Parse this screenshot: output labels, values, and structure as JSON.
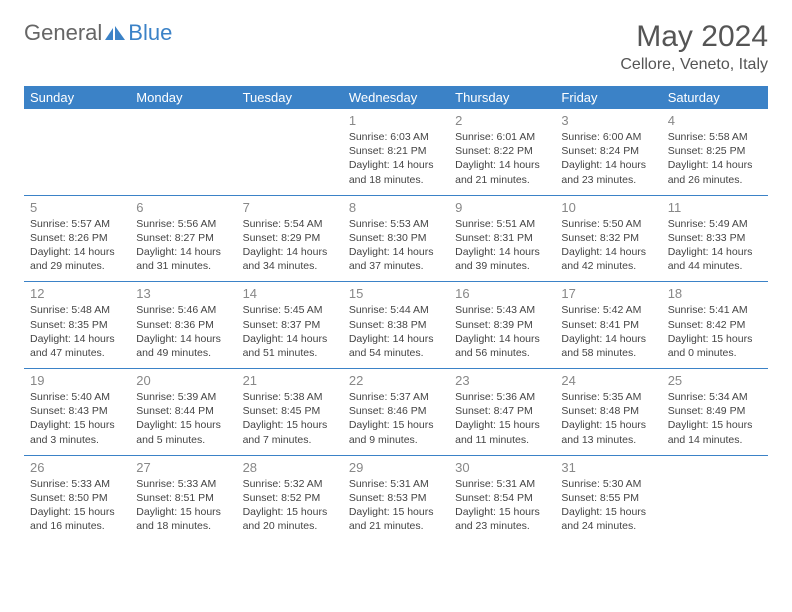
{
  "logo": {
    "text1": "General",
    "text2": "Blue",
    "icon_color": "#3b82c7"
  },
  "title": "May 2024",
  "location": "Cellore, Veneto, Italy",
  "colors": {
    "header_bg": "#3b82c7",
    "header_text": "#ffffff",
    "border": "#3b82c7",
    "daynum": "#888888",
    "body_text": "#444444"
  },
  "weekdays": [
    "Sunday",
    "Monday",
    "Tuesday",
    "Wednesday",
    "Thursday",
    "Friday",
    "Saturday"
  ],
  "weeks": [
    [
      null,
      null,
      null,
      {
        "num": "1",
        "sunrise": "6:03 AM",
        "sunset": "8:21 PM",
        "daylight": "14 hours and 18 minutes."
      },
      {
        "num": "2",
        "sunrise": "6:01 AM",
        "sunset": "8:22 PM",
        "daylight": "14 hours and 21 minutes."
      },
      {
        "num": "3",
        "sunrise": "6:00 AM",
        "sunset": "8:24 PM",
        "daylight": "14 hours and 23 minutes."
      },
      {
        "num": "4",
        "sunrise": "5:58 AM",
        "sunset": "8:25 PM",
        "daylight": "14 hours and 26 minutes."
      }
    ],
    [
      {
        "num": "5",
        "sunrise": "5:57 AM",
        "sunset": "8:26 PM",
        "daylight": "14 hours and 29 minutes."
      },
      {
        "num": "6",
        "sunrise": "5:56 AM",
        "sunset": "8:27 PM",
        "daylight": "14 hours and 31 minutes."
      },
      {
        "num": "7",
        "sunrise": "5:54 AM",
        "sunset": "8:29 PM",
        "daylight": "14 hours and 34 minutes."
      },
      {
        "num": "8",
        "sunrise": "5:53 AM",
        "sunset": "8:30 PM",
        "daylight": "14 hours and 37 minutes."
      },
      {
        "num": "9",
        "sunrise": "5:51 AM",
        "sunset": "8:31 PM",
        "daylight": "14 hours and 39 minutes."
      },
      {
        "num": "10",
        "sunrise": "5:50 AM",
        "sunset": "8:32 PM",
        "daylight": "14 hours and 42 minutes."
      },
      {
        "num": "11",
        "sunrise": "5:49 AM",
        "sunset": "8:33 PM",
        "daylight": "14 hours and 44 minutes."
      }
    ],
    [
      {
        "num": "12",
        "sunrise": "5:48 AM",
        "sunset": "8:35 PM",
        "daylight": "14 hours and 47 minutes."
      },
      {
        "num": "13",
        "sunrise": "5:46 AM",
        "sunset": "8:36 PM",
        "daylight": "14 hours and 49 minutes."
      },
      {
        "num": "14",
        "sunrise": "5:45 AM",
        "sunset": "8:37 PM",
        "daylight": "14 hours and 51 minutes."
      },
      {
        "num": "15",
        "sunrise": "5:44 AM",
        "sunset": "8:38 PM",
        "daylight": "14 hours and 54 minutes."
      },
      {
        "num": "16",
        "sunrise": "5:43 AM",
        "sunset": "8:39 PM",
        "daylight": "14 hours and 56 minutes."
      },
      {
        "num": "17",
        "sunrise": "5:42 AM",
        "sunset": "8:41 PM",
        "daylight": "14 hours and 58 minutes."
      },
      {
        "num": "18",
        "sunrise": "5:41 AM",
        "sunset": "8:42 PM",
        "daylight": "15 hours and 0 minutes."
      }
    ],
    [
      {
        "num": "19",
        "sunrise": "5:40 AM",
        "sunset": "8:43 PM",
        "daylight": "15 hours and 3 minutes."
      },
      {
        "num": "20",
        "sunrise": "5:39 AM",
        "sunset": "8:44 PM",
        "daylight": "15 hours and 5 minutes."
      },
      {
        "num": "21",
        "sunrise": "5:38 AM",
        "sunset": "8:45 PM",
        "daylight": "15 hours and 7 minutes."
      },
      {
        "num": "22",
        "sunrise": "5:37 AM",
        "sunset": "8:46 PM",
        "daylight": "15 hours and 9 minutes."
      },
      {
        "num": "23",
        "sunrise": "5:36 AM",
        "sunset": "8:47 PM",
        "daylight": "15 hours and 11 minutes."
      },
      {
        "num": "24",
        "sunrise": "5:35 AM",
        "sunset": "8:48 PM",
        "daylight": "15 hours and 13 minutes."
      },
      {
        "num": "25",
        "sunrise": "5:34 AM",
        "sunset": "8:49 PM",
        "daylight": "15 hours and 14 minutes."
      }
    ],
    [
      {
        "num": "26",
        "sunrise": "5:33 AM",
        "sunset": "8:50 PM",
        "daylight": "15 hours and 16 minutes."
      },
      {
        "num": "27",
        "sunrise": "5:33 AM",
        "sunset": "8:51 PM",
        "daylight": "15 hours and 18 minutes."
      },
      {
        "num": "28",
        "sunrise": "5:32 AM",
        "sunset": "8:52 PM",
        "daylight": "15 hours and 20 minutes."
      },
      {
        "num": "29",
        "sunrise": "5:31 AM",
        "sunset": "8:53 PM",
        "daylight": "15 hours and 21 minutes."
      },
      {
        "num": "30",
        "sunrise": "5:31 AM",
        "sunset": "8:54 PM",
        "daylight": "15 hours and 23 minutes."
      },
      {
        "num": "31",
        "sunrise": "5:30 AM",
        "sunset": "8:55 PM",
        "daylight": "15 hours and 24 minutes."
      },
      null
    ]
  ]
}
